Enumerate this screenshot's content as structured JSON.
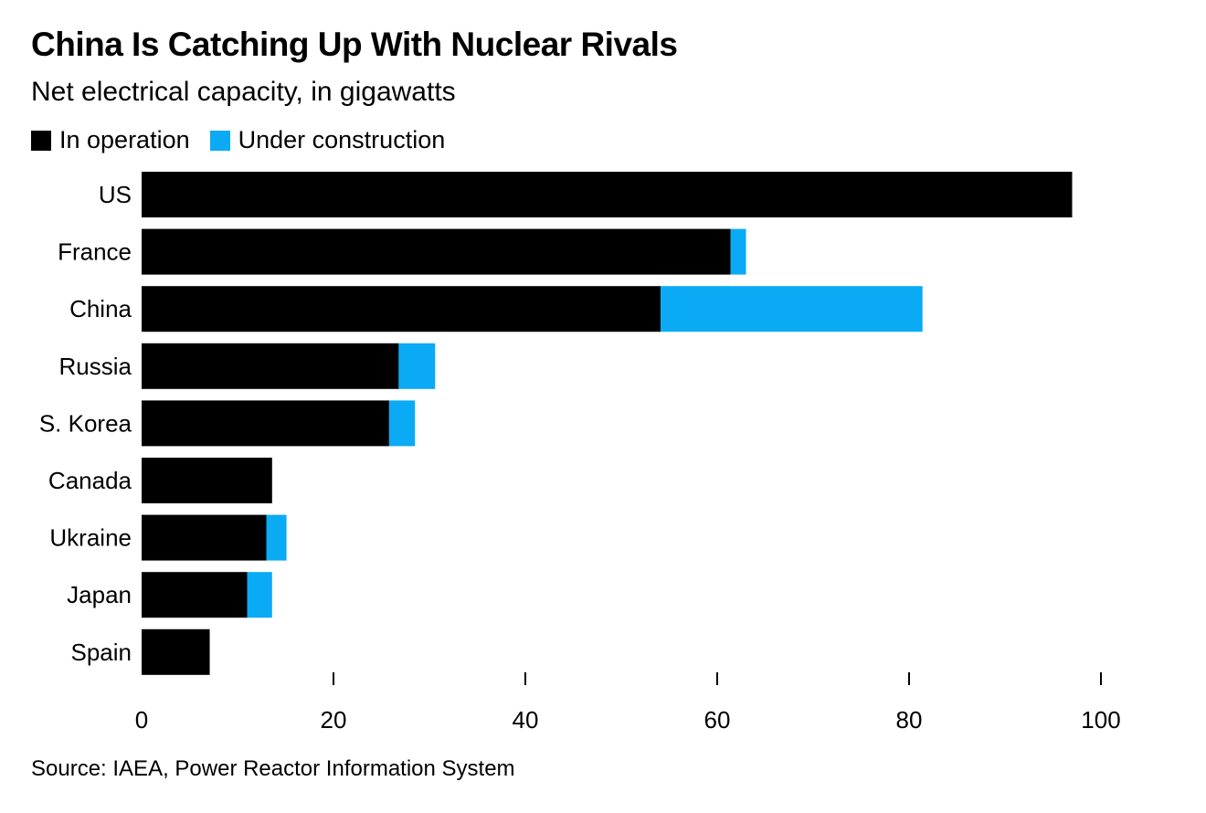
{
  "title": "China Is Catching Up With Nuclear Rivals",
  "subtitle": "Net electrical capacity, in gigawatts",
  "legend": {
    "operation": "In operation",
    "construction": "Under construction"
  },
  "colors": {
    "operation": "#000000",
    "construction": "#0aaaf5"
  },
  "source": "Source: IAEA, Power Reactor Information System",
  "chart_data": {
    "type": "bar",
    "orientation": "horizontal",
    "stacked": true,
    "title": "China Is Catching Up With Nuclear Rivals",
    "subtitle": "Net electrical capacity, in gigawatts",
    "categories": [
      "US",
      "France",
      "China",
      "Russia",
      "S. Korea",
      "Canada",
      "Ukraine",
      "Japan",
      "Spain"
    ],
    "series": [
      {
        "name": "In operation",
        "values": [
          97.0,
          61.4,
          54.1,
          26.8,
          25.8,
          13.6,
          13.0,
          11.0,
          7.1
        ]
      },
      {
        "name": "Under construction",
        "values": [
          0.0,
          1.6,
          27.3,
          3.8,
          2.7,
          0.0,
          2.1,
          2.6,
          0.0
        ]
      }
    ],
    "xlim": [
      0,
      100
    ],
    "xticks": [
      "0",
      "20",
      "40",
      "60",
      "80",
      "100"
    ],
    "xlabel": "",
    "ylabel": "",
    "grid": false,
    "legend_position": "top-left"
  }
}
